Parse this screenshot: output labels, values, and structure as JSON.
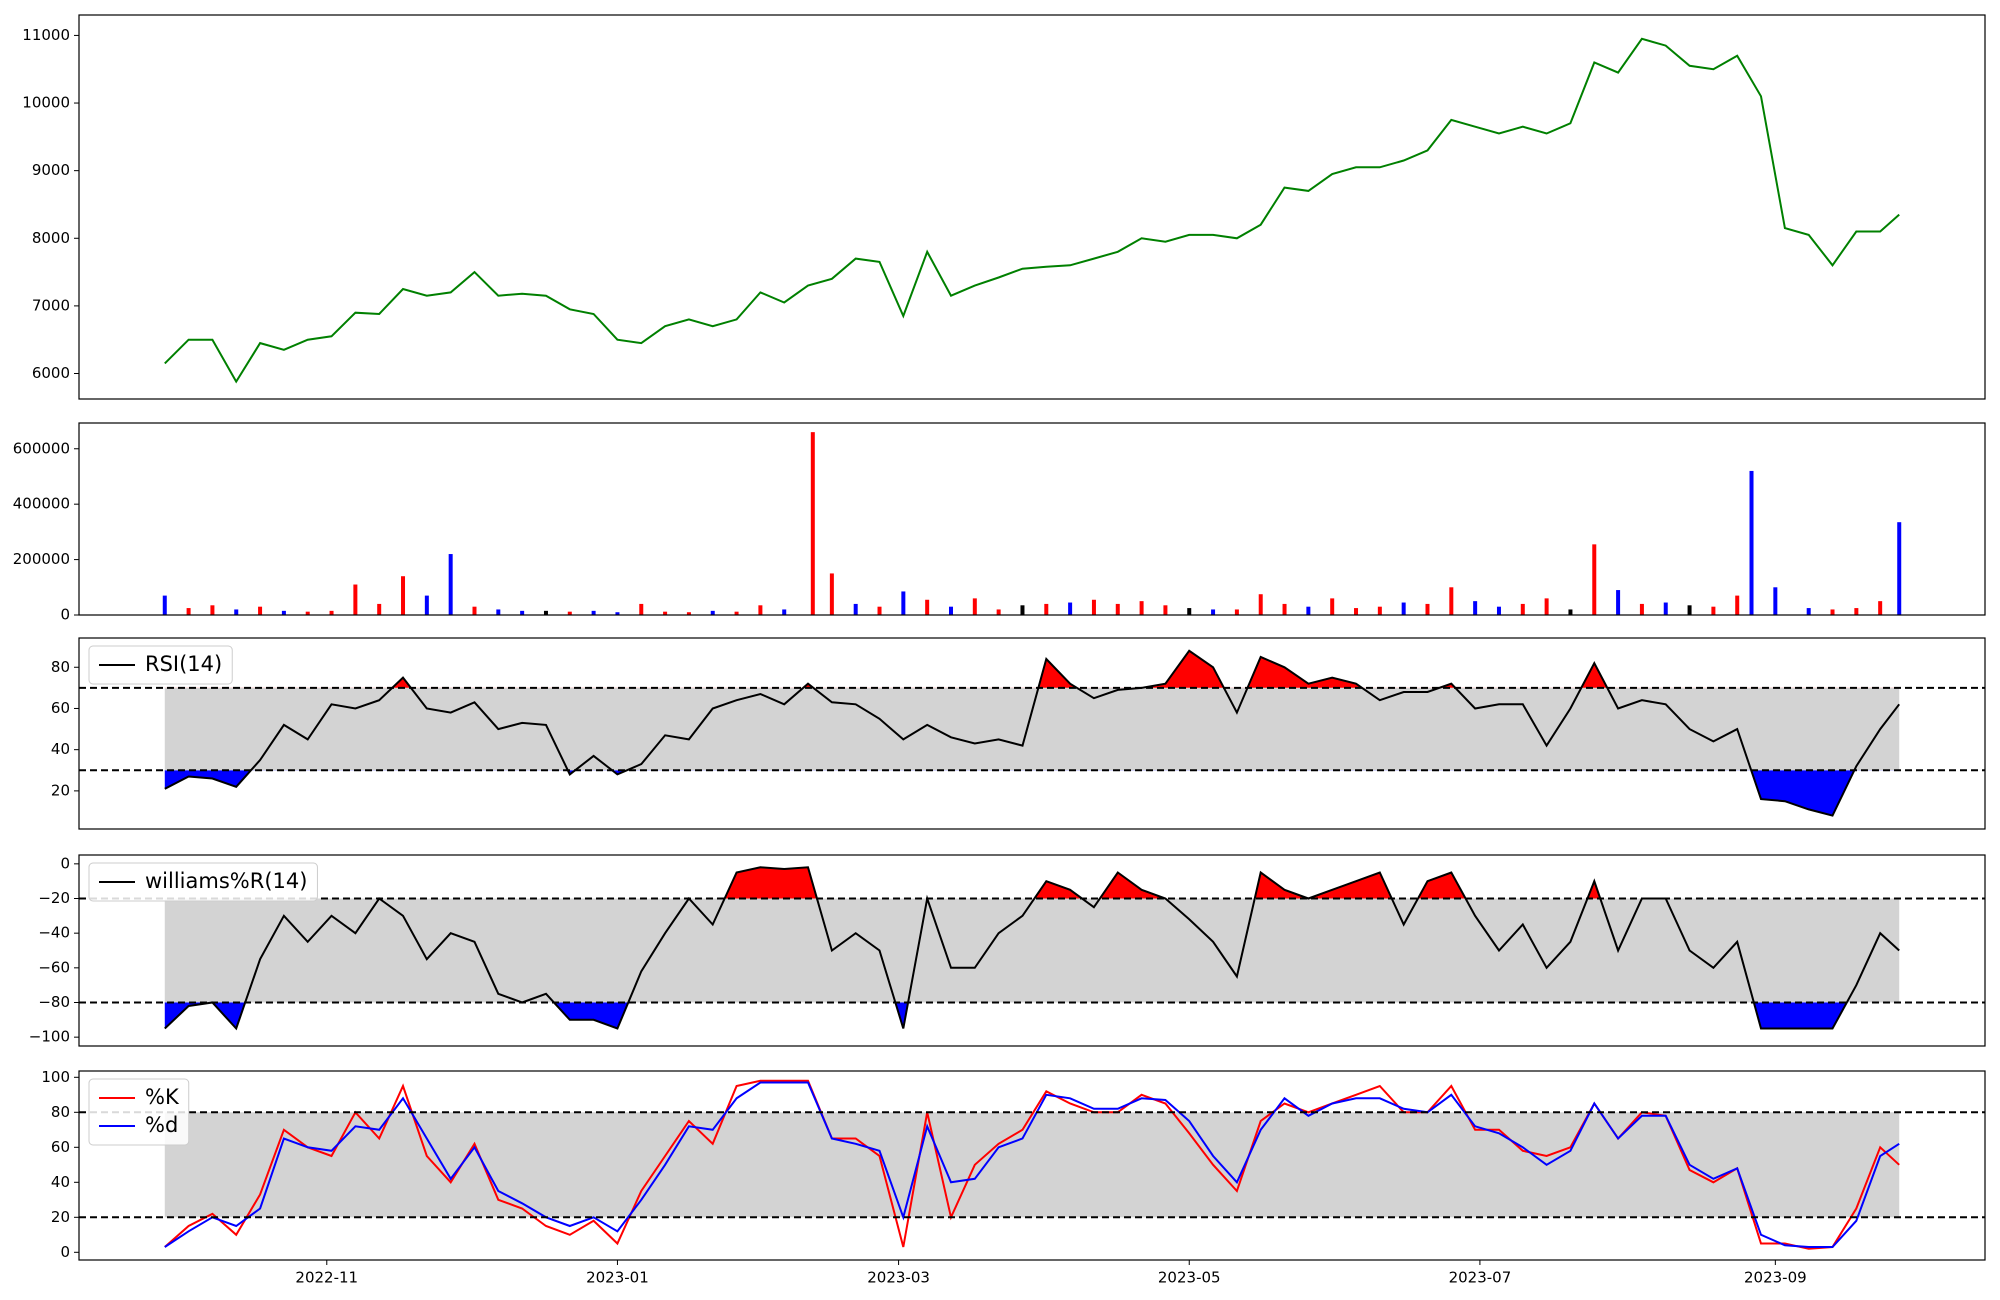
{
  "chart_data": [
    {
      "type": "line",
      "xlim": [
        "2022-09-10",
        "2023-10-15"
      ],
      "ylim": [
        5623,
        11302
      ],
      "yticks": [
        6000,
        7000,
        8000,
        9000,
        10000,
        11000
      ],
      "x": [
        "2022-09-28",
        "2022-10-03",
        "2022-10-08",
        "2022-10-13",
        "2022-10-18",
        "2022-10-23",
        "2022-10-28",
        "2022-11-02",
        "2022-11-07",
        "2022-11-12",
        "2022-11-17",
        "2022-11-22",
        "2022-11-27",
        "2022-12-02",
        "2022-12-07",
        "2022-12-12",
        "2022-12-17",
        "2022-12-22",
        "2022-12-27",
        "2023-01-01",
        "2023-01-06",
        "2023-01-11",
        "2023-01-16",
        "2023-01-21",
        "2023-01-26",
        "2023-01-31",
        "2023-02-05",
        "2023-02-10",
        "2023-02-15",
        "2023-02-20",
        "2023-02-25",
        "2023-03-02",
        "2023-03-07",
        "2023-03-12",
        "2023-03-17",
        "2023-03-22",
        "2023-03-27",
        "2023-04-01",
        "2023-04-06",
        "2023-04-11",
        "2023-04-16",
        "2023-04-21",
        "2023-04-26",
        "2023-05-01",
        "2023-05-06",
        "2023-05-11",
        "2023-05-16",
        "2023-05-21",
        "2023-05-26",
        "2023-05-31",
        "2023-06-05",
        "2023-06-10",
        "2023-06-15",
        "2023-06-20",
        "2023-06-25",
        "2023-06-30",
        "2023-07-05",
        "2023-07-10",
        "2023-07-15",
        "2023-07-20",
        "2023-07-25",
        "2023-07-30",
        "2023-08-04",
        "2023-08-09",
        "2023-08-14",
        "2023-08-19",
        "2023-08-24",
        "2023-08-29",
        "2023-09-03",
        "2023-09-08",
        "2023-09-13",
        "2023-09-18",
        "2023-09-23",
        "2023-09-27"
      ],
      "series": [
        {
          "color": "green",
          "values": [
            6150,
            6500,
            6500,
            5880,
            6450,
            6350,
            6500,
            6550,
            6900,
            6880,
            7250,
            7150,
            7200,
            7500,
            7150,
            7180,
            7150,
            6950,
            6880,
            6500,
            6450,
            6700,
            6800,
            6700,
            6800,
            7200,
            7050,
            7300,
            7400,
            7700,
            7650,
            6850,
            7800,
            7150,
            7300,
            7420,
            7550,
            7580,
            7600,
            7700,
            7800,
            8000,
            7950,
            8050,
            8050,
            8000,
            8200,
            8750,
            8700,
            8950,
            9050,
            9050,
            9150,
            9300,
            9750,
            9650,
            9550,
            9650,
            9550,
            9700,
            10600,
            10450,
            10950,
            10850,
            10550,
            10500,
            10700,
            10100,
            8150,
            8050,
            7600,
            8100,
            8100,
            8350
          ]
        }
      ]
    },
    {
      "type": "bar",
      "xlim": [
        "2022-09-10",
        "2023-10-15"
      ],
      "ylim": [
        0,
        693000
      ],
      "yticks": [
        0,
        200000,
        400000,
        600000
      ],
      "x": [
        "2022-09-28",
        "2022-10-03",
        "2022-10-08",
        "2022-10-13",
        "2022-10-18",
        "2022-10-23",
        "2022-10-28",
        "2022-11-02",
        "2022-11-07",
        "2022-11-12",
        "2022-11-17",
        "2022-11-22",
        "2022-11-27",
        "2022-12-02",
        "2022-12-07",
        "2022-12-12",
        "2022-12-17",
        "2022-12-22",
        "2022-12-27",
        "2023-01-01",
        "2023-01-06",
        "2023-01-11",
        "2023-01-16",
        "2023-01-21",
        "2023-01-26",
        "2023-01-31",
        "2023-02-05",
        "2023-02-11",
        "2023-02-15",
        "2023-02-20",
        "2023-02-25",
        "2023-03-02",
        "2023-03-07",
        "2023-03-12",
        "2023-03-17",
        "2023-03-22",
        "2023-03-27",
        "2023-04-01",
        "2023-04-06",
        "2023-04-11",
        "2023-04-16",
        "2023-04-21",
        "2023-04-26",
        "2023-05-01",
        "2023-05-06",
        "2023-05-11",
        "2023-05-16",
        "2023-05-21",
        "2023-05-26",
        "2023-05-31",
        "2023-06-05",
        "2023-06-10",
        "2023-06-15",
        "2023-06-20",
        "2023-06-25",
        "2023-06-30",
        "2023-07-05",
        "2023-07-10",
        "2023-07-15",
        "2023-07-20",
        "2023-07-25",
        "2023-07-30",
        "2023-08-04",
        "2023-08-09",
        "2023-08-14",
        "2023-08-19",
        "2023-08-24",
        "2023-08-27",
        "2023-09-01",
        "2023-09-08",
        "2023-09-13",
        "2023-09-18",
        "2023-09-23",
        "2023-09-27"
      ],
      "values": [
        70000,
        25000,
        35000,
        20000,
        30000,
        15000,
        12000,
        15000,
        110000,
        40000,
        140000,
        70000,
        220000,
        30000,
        20000,
        15000,
        15000,
        12000,
        15000,
        10000,
        40000,
        12000,
        10000,
        15000,
        12000,
        35000,
        20000,
        660000,
        150000,
        40000,
        30000,
        85000,
        55000,
        30000,
        60000,
        20000,
        35000,
        40000,
        45000,
        55000,
        40000,
        50000,
        35000,
        25000,
        20000,
        20000,
        75000,
        40000,
        30000,
        60000,
        25000,
        30000,
        45000,
        40000,
        100000,
        50000,
        30000,
        40000,
        60000,
        20000,
        255000,
        90000,
        40000,
        45000,
        35000,
        30000,
        70000,
        520000,
        100000,
        25000,
        20000,
        25000,
        50000,
        335000
      ],
      "colors": [
        "blue",
        "red",
        "red",
        "blue",
        "red",
        "blue",
        "red",
        "red",
        "red",
        "red",
        "red",
        "blue",
        "blue",
        "red",
        "blue",
        "blue",
        "black",
        "red",
        "blue",
        "blue",
        "red",
        "red",
        "red",
        "blue",
        "red",
        "red",
        "blue",
        "red",
        "red",
        "blue",
        "red",
        "blue",
        "red",
        "blue",
        "red",
        "red",
        "black",
        "red",
        "blue",
        "red",
        "red",
        "red",
        "red",
        "black",
        "blue",
        "red",
        "red",
        "red",
        "blue",
        "red",
        "red",
        "red",
        "blue",
        "red",
        "red",
        "blue",
        "blue",
        "red",
        "red",
        "black",
        "red",
        "blue",
        "red",
        "blue",
        "black",
        "red",
        "red",
        "blue",
        "blue",
        "blue",
        "red",
        "red",
        "red",
        "blue"
      ]
    },
    {
      "type": "line",
      "xlim": [
        "2022-09-10",
        "2023-10-15"
      ],
      "ylim": [
        1.5,
        94.2
      ],
      "yticks": [
        20,
        40,
        60,
        80
      ],
      "bands": [
        30,
        70
      ],
      "band_color": "lightgray",
      "fill_above": "red",
      "fill_below": "blue",
      "legend": "upper left",
      "x": [
        "2022-09-28",
        "2022-10-03",
        "2022-10-08",
        "2022-10-13",
        "2022-10-18",
        "2022-10-23",
        "2022-10-28",
        "2022-11-02",
        "2022-11-07",
        "2022-11-12",
        "2022-11-17",
        "2022-11-22",
        "2022-11-27",
        "2022-12-02",
        "2022-12-07",
        "2022-12-12",
        "2022-12-17",
        "2022-12-22",
        "2022-12-27",
        "2023-01-01",
        "2023-01-06",
        "2023-01-11",
        "2023-01-16",
        "2023-01-21",
        "2023-01-26",
        "2023-01-31",
        "2023-02-05",
        "2023-02-10",
        "2023-02-15",
        "2023-02-20",
        "2023-02-25",
        "2023-03-02",
        "2023-03-07",
        "2023-03-12",
        "2023-03-17",
        "2023-03-22",
        "2023-03-27",
        "2023-04-01",
        "2023-04-06",
        "2023-04-11",
        "2023-04-16",
        "2023-04-21",
        "2023-04-26",
        "2023-05-01",
        "2023-05-06",
        "2023-05-11",
        "2023-05-16",
        "2023-05-21",
        "2023-05-26",
        "2023-05-31",
        "2023-06-05",
        "2023-06-10",
        "2023-06-15",
        "2023-06-20",
        "2023-06-25",
        "2023-06-30",
        "2023-07-05",
        "2023-07-10",
        "2023-07-15",
        "2023-07-20",
        "2023-07-25",
        "2023-07-30",
        "2023-08-04",
        "2023-08-09",
        "2023-08-14",
        "2023-08-19",
        "2023-08-24",
        "2023-08-29",
        "2023-09-03",
        "2023-09-08",
        "2023-09-13",
        "2023-09-18",
        "2023-09-23",
        "2023-09-27"
      ],
      "series": [
        {
          "name": "RSI(14)",
          "color": "black",
          "values": [
            21,
            27,
            26,
            22,
            35,
            52,
            45,
            62,
            60,
            64,
            75,
            60,
            58,
            63,
            50,
            53,
            52,
            28,
            37,
            28,
            33,
            47,
            45,
            60,
            64,
            67,
            62,
            72,
            63,
            62,
            55,
            45,
            52,
            46,
            43,
            45,
            42,
            84,
            72,
            65,
            69,
            70,
            72,
            88,
            80,
            58,
            85,
            80,
            72,
            75,
            72,
            64,
            68,
            68,
            72,
            60,
            62,
            62,
            42,
            60,
            82,
            60,
            64,
            62,
            50,
            44,
            50,
            16,
            15,
            11,
            8,
            32,
            50,
            62
          ]
        }
      ]
    },
    {
      "type": "line",
      "xlim": [
        "2022-09-10",
        "2023-10-15"
      ],
      "ylim": [
        -105.1,
        5.1
      ],
      "yticks": [
        {
          "value": -100,
          "label": "−100"
        },
        {
          "value": -80,
          "label": "−80"
        },
        {
          "value": -60,
          "label": "−60"
        },
        {
          "value": -40,
          "label": "−40"
        },
        {
          "value": -20,
          "label": "−20"
        },
        0
      ],
      "bands": [
        -80,
        -20
      ],
      "band_color": "lightgray",
      "fill_above": "red",
      "fill_below": "blue",
      "legend": "upper left",
      "x": [
        "2022-09-28",
        "2022-10-03",
        "2022-10-08",
        "2022-10-13",
        "2022-10-18",
        "2022-10-23",
        "2022-10-28",
        "2022-11-02",
        "2022-11-07",
        "2022-11-12",
        "2022-11-17",
        "2022-11-22",
        "2022-11-27",
        "2022-12-02",
        "2022-12-07",
        "2022-12-12",
        "2022-12-17",
        "2022-12-22",
        "2022-12-27",
        "2023-01-01",
        "2023-01-06",
        "2023-01-11",
        "2023-01-16",
        "2023-01-21",
        "2023-01-26",
        "2023-01-31",
        "2023-02-05",
        "2023-02-10",
        "2023-02-15",
        "2023-02-20",
        "2023-02-25",
        "2023-03-02",
        "2023-03-07",
        "2023-03-12",
        "2023-03-17",
        "2023-03-22",
        "2023-03-27",
        "2023-04-01",
        "2023-04-06",
        "2023-04-11",
        "2023-04-16",
        "2023-04-21",
        "2023-04-26",
        "2023-05-01",
        "2023-05-06",
        "2023-05-11",
        "2023-05-16",
        "2023-05-21",
        "2023-05-26",
        "2023-05-31",
        "2023-06-05",
        "2023-06-10",
        "2023-06-15",
        "2023-06-20",
        "2023-06-25",
        "2023-06-30",
        "2023-07-05",
        "2023-07-10",
        "2023-07-15",
        "2023-07-20",
        "2023-07-25",
        "2023-07-30",
        "2023-08-04",
        "2023-08-09",
        "2023-08-14",
        "2023-08-19",
        "2023-08-24",
        "2023-08-29",
        "2023-09-03",
        "2023-09-08",
        "2023-09-13",
        "2023-09-18",
        "2023-09-23",
        "2023-09-27"
      ],
      "series": [
        {
          "name": "williams%R(14)",
          "color": "black",
          "values": [
            -95,
            -82,
            -80,
            -95,
            -55,
            -30,
            -45,
            -30,
            -40,
            -20,
            -30,
            -55,
            -40,
            -45,
            -75,
            -80,
            -75,
            -90,
            -90,
            -95,
            -62,
            -40,
            -20,
            -35,
            -5,
            -2,
            -3,
            -2,
            -50,
            -40,
            -50,
            -95,
            -20,
            -60,
            -60,
            -40,
            -30,
            -10,
            -15,
            -25,
            -5,
            -15,
            -20,
            -32,
            -45,
            -65,
            -5,
            -15,
            -20,
            -15,
            -10,
            -5,
            -35,
            -10,
            -5,
            -30,
            -50,
            -35,
            -60,
            -45,
            -10,
            -50,
            -20,
            -20,
            -50,
            -60,
            -45,
            -95,
            -95,
            -95,
            -95,
            -70,
            -40,
            -50
          ]
        }
      ]
    },
    {
      "type": "line",
      "xlim": [
        "2022-09-10",
        "2023-10-15"
      ],
      "ylim": [
        -4.4,
        103.6
      ],
      "yticks": [
        0,
        20,
        40,
        60,
        80,
        100
      ],
      "bands": [
        20,
        80
      ],
      "band_color": "lightgray",
      "legend": "upper left",
      "xticks": [
        {
          "value": "2022-11-01",
          "label": "2022-11"
        },
        {
          "value": "2023-01-01",
          "label": "2023-01"
        },
        {
          "value": "2023-03-01",
          "label": "2023-03"
        },
        {
          "value": "2023-05-01",
          "label": "2023-05"
        },
        {
          "value": "2023-07-01",
          "label": "2023-07"
        },
        {
          "value": "2023-09-01",
          "label": "2023-09"
        }
      ],
      "x": [
        "2022-09-28",
        "2022-10-03",
        "2022-10-08",
        "2022-10-13",
        "2022-10-18",
        "2022-10-23",
        "2022-10-28",
        "2022-11-02",
        "2022-11-07",
        "2022-11-12",
        "2022-11-17",
        "2022-11-22",
        "2022-11-27",
        "2022-12-02",
        "2022-12-07",
        "2022-12-12",
        "2022-12-17",
        "2022-12-22",
        "2022-12-27",
        "2023-01-01",
        "2023-01-06",
        "2023-01-11",
        "2023-01-16",
        "2023-01-21",
        "2023-01-26",
        "2023-01-31",
        "2023-02-05",
        "2023-02-10",
        "2023-02-15",
        "2023-02-20",
        "2023-02-25",
        "2023-03-02",
        "2023-03-07",
        "2023-03-12",
        "2023-03-17",
        "2023-03-22",
        "2023-03-27",
        "2023-04-01",
        "2023-04-06",
        "2023-04-11",
        "2023-04-16",
        "2023-04-21",
        "2023-04-26",
        "2023-05-01",
        "2023-05-06",
        "2023-05-11",
        "2023-05-16",
        "2023-05-21",
        "2023-05-26",
        "2023-05-31",
        "2023-06-05",
        "2023-06-10",
        "2023-06-15",
        "2023-06-20",
        "2023-06-25",
        "2023-06-30",
        "2023-07-05",
        "2023-07-10",
        "2023-07-15",
        "2023-07-20",
        "2023-07-25",
        "2023-07-30",
        "2023-08-04",
        "2023-08-09",
        "2023-08-14",
        "2023-08-19",
        "2023-08-24",
        "2023-08-29",
        "2023-09-03",
        "2023-09-08",
        "2023-09-13",
        "2023-09-18",
        "2023-09-23",
        "2023-09-27"
      ],
      "series": [
        {
          "name": "%K",
          "color": "red",
          "values": [
            3,
            15,
            22,
            10,
            33,
            70,
            60,
            55,
            80,
            65,
            95,
            55,
            40,
            62,
            30,
            25,
            15,
            10,
            18,
            5,
            35,
            55,
            75,
            62,
            95,
            98,
            98,
            98,
            65,
            65,
            55,
            3,
            80,
            20,
            50,
            62,
            70,
            92,
            85,
            80,
            80,
            90,
            85,
            68,
            50,
            35,
            75,
            85,
            80,
            85,
            90,
            95,
            80,
            80,
            95,
            70,
            70,
            58,
            55,
            60,
            85,
            65,
            80,
            78,
            47,
            40,
            48,
            5,
            5,
            2,
            3,
            25,
            60,
            50
          ]
        },
        {
          "name": "%d",
          "color": "blue",
          "values": [
            3,
            12,
            20,
            15,
            25,
            65,
            60,
            58,
            72,
            70,
            88,
            65,
            42,
            60,
            35,
            28,
            20,
            15,
            20,
            12,
            30,
            50,
            72,
            70,
            88,
            97,
            97,
            97,
            65,
            62,
            58,
            20,
            72,
            40,
            42,
            60,
            65,
            90,
            88,
            82,
            82,
            88,
            87,
            75,
            55,
            40,
            70,
            88,
            78,
            85,
            88,
            88,
            82,
            80,
            90,
            72,
            68,
            60,
            50,
            58,
            85,
            65,
            78,
            78,
            50,
            42,
            48,
            10,
            4,
            3,
            3,
            18,
            55,
            62
          ]
        }
      ]
    }
  ]
}
